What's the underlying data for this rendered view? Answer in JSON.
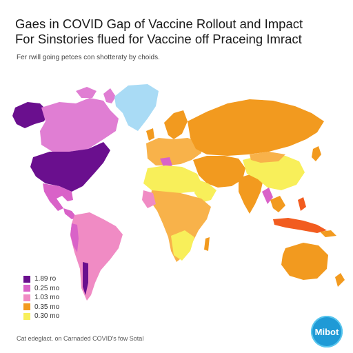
{
  "title": {
    "line1": "Gaes in COVID Gap of Vaccine Rollout and Impact",
    "line2": "For Sinstories flued for Vaccine off Praceing Imract"
  },
  "subtitle": "Fer rwill going petces con shotteraty by choids.",
  "colors": {
    "tier1": "#6a0f8e",
    "tier2": "#d962c8",
    "tier3": "#f08bc4",
    "tier4": "#f29a1f",
    "tier5": "#f8ef5a",
    "greenland": "#a9dbf5",
    "ocean": "#ffffff"
  },
  "legend": [
    {
      "label": "1.89 ro",
      "color": "#6a0f8e"
    },
    {
      "label": "0.25 mo",
      "color": "#d962c8"
    },
    {
      "label": "1.03 mo",
      "color": "#f08bc4"
    },
    {
      "label": "0.35 mo",
      "color": "#f29a1f"
    },
    {
      "label": "0.30 mo",
      "color": "#f8ef5a"
    }
  ],
  "source": "Cat edeglact. on Carnaded COVID's fow Sotal",
  "logo": {
    "text": "Mibot"
  }
}
